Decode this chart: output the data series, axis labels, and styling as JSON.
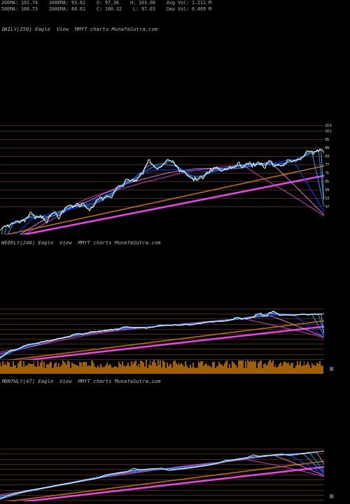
{
  "title_line1": "20EMA: 102.74    100EMA: 93.62    O: 97.36    H: 103.00    Avg Vol: 1.211 M",
  "title_line2": "50EMA: 100.73    200EMA: 84.61    C: 100.32    L: 97.03    Day Vol: 0.409 M",
  "panel1_label": "DAILY(250) Eagle  View  MMYT charts MunafaSutra.com",
  "panel2_label": "WEEKLY(248) Eagle  View  MMYT charts MunafaSutra.com",
  "panel3_label": "MONTHLY(47) Eagle  View  MMYT charts MunafaSutra.com",
  "bg_color": "#000000",
  "y_ticks_panel1": [
    47,
    53,
    59,
    65,
    71,
    77,
    83,
    89,
    95,
    101,
    105
  ],
  "hline_color": "#995500",
  "hline_alpha": 0.75,
  "magenta": "#ff44ff",
  "orange_line": "#cc7700",
  "blue1": "#4488ff",
  "blue2": "#0055cc",
  "cyan1": "#00ccff",
  "cyan2": "#66aaff",
  "pink": "#ff88cc",
  "white": "#ffffff",
  "gold_bar": "#aa6600"
}
